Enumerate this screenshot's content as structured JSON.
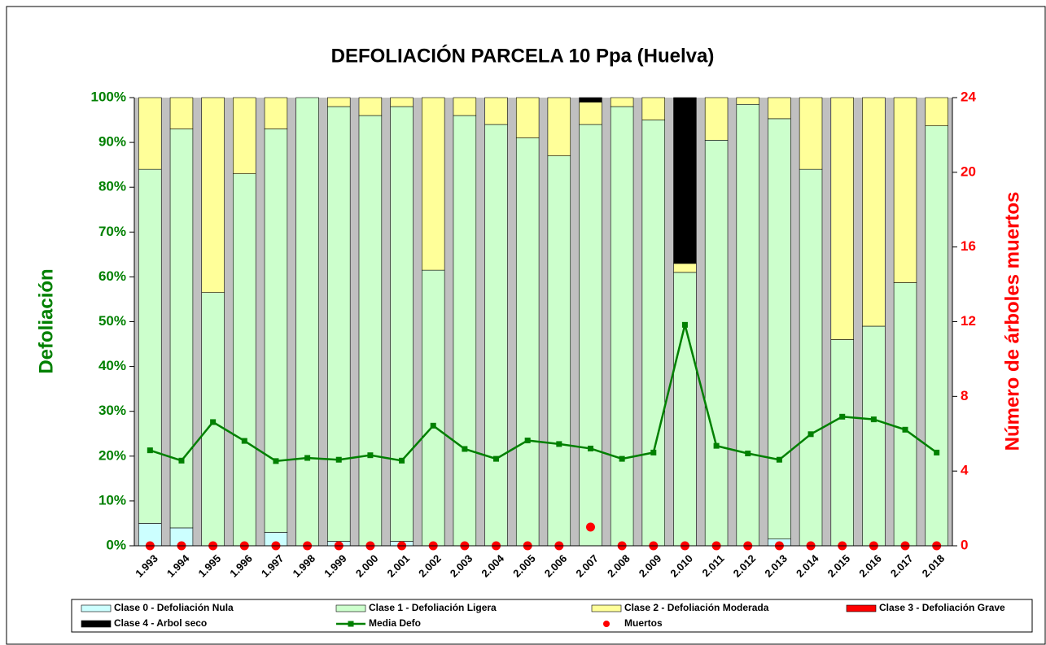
{
  "chart_data": {
    "type": "bar",
    "stacked": true,
    "title": "DEFOLIACIÓN PARCELA 10 Ppa (Huelva)",
    "ylabel": "Defoliación",
    "y2label": "Número de árboles muertos",
    "categories": [
      "1.993",
      "1.994",
      "1.995",
      "1.996",
      "1.997",
      "1.998",
      "1.999",
      "2.000",
      "2.001",
      "2.002",
      "2.003",
      "2.004",
      "2.005",
      "2.006",
      "2.007",
      "2.008",
      "2.009",
      "2.010",
      "2.011",
      "2.012",
      "2.013",
      "2.014",
      "2.015",
      "2.016",
      "2.017",
      "2.018"
    ],
    "series": [
      {
        "name": "Clase 0 - Defoliación Nula",
        "type": "bar",
        "color": "#ccffff",
        "values": [
          5,
          4,
          0,
          0,
          3,
          0,
          1,
          0,
          1,
          0,
          0,
          0,
          0,
          0,
          0,
          0,
          0,
          0,
          0,
          0,
          1.5,
          0,
          0,
          0,
          0,
          0
        ]
      },
      {
        "name": "Clase 1 - Defoliación Ligera",
        "type": "bar",
        "color": "#ccffcc",
        "values": [
          79,
          89,
          56.5,
          83,
          90,
          100,
          97,
          96,
          97,
          61.5,
          96,
          94,
          91,
          87,
          94,
          98,
          95,
          61,
          90.5,
          98.5,
          93.8,
          84,
          46,
          49,
          58.7,
          93.7
        ]
      },
      {
        "name": "Clase 2 - Defoliación Moderada",
        "type": "bar",
        "color": "#ffff99",
        "values": [
          16,
          7,
          43.5,
          17,
          7,
          0,
          2,
          4,
          2,
          38.5,
          4,
          6,
          9,
          13,
          5,
          2,
          5,
          2,
          9.5,
          1.5,
          4.7,
          16,
          54,
          51,
          41.3,
          6.3
        ]
      },
      {
        "name": "Clase 3 - Defoliación Grave",
        "type": "bar",
        "color": "#ff0000",
        "values": [
          0,
          0,
          0,
          0,
          0,
          0,
          0,
          0,
          0,
          0,
          0,
          0,
          0,
          0,
          0,
          0,
          0,
          0,
          0,
          0,
          0,
          0,
          0,
          0,
          0,
          0
        ]
      },
      {
        "name": "Clase 4 - Arbol seco",
        "type": "bar",
        "color": "#000000",
        "values": [
          0,
          0,
          0,
          0,
          0,
          0,
          0,
          0,
          0,
          0,
          0,
          0,
          0,
          0,
          1,
          0,
          0,
          37,
          0,
          0,
          0,
          0,
          0,
          0,
          0,
          0
        ]
      },
      {
        "name": "Media Defo",
        "type": "line",
        "color": "#008000",
        "values": [
          21.3,
          19,
          27.6,
          23.4,
          18.9,
          19.6,
          19.2,
          20.2,
          19,
          26.8,
          21.6,
          19.4,
          23.5,
          22.7,
          21.7,
          19.4,
          20.8,
          49.3,
          22.3,
          20.6,
          19.2,
          24.9,
          28.8,
          28.2,
          25.9,
          20.8
        ]
      },
      {
        "name": "Muertos",
        "type": "scatter",
        "axis": "y2",
        "color": "#ff0000",
        "values": [
          0,
          0,
          0,
          0,
          0,
          0,
          0,
          0,
          0,
          0,
          0,
          0,
          0,
          0,
          1,
          0,
          0,
          0,
          0,
          0,
          0,
          0,
          0,
          0,
          0,
          0
        ]
      }
    ],
    "ylim": [
      0,
      100
    ],
    "yticks": [
      {
        "value": 0,
        "label": "0%"
      },
      {
        "value": 10,
        "label": "10%"
      },
      {
        "value": 20,
        "label": "20%"
      },
      {
        "value": 30,
        "label": "30%"
      },
      {
        "value": 40,
        "label": "40%"
      },
      {
        "value": 50,
        "label": "50%"
      },
      {
        "value": 60,
        "label": "60%"
      },
      {
        "value": 70,
        "label": "70%"
      },
      {
        "value": 80,
        "label": "80%"
      },
      {
        "value": 90,
        "label": "90%"
      },
      {
        "value": 100,
        "label": "100%"
      }
    ],
    "y2lim": [
      0,
      24
    ],
    "y2ticks": [
      0,
      4,
      8,
      12,
      16,
      20,
      24
    ],
    "legend": "bottom"
  }
}
